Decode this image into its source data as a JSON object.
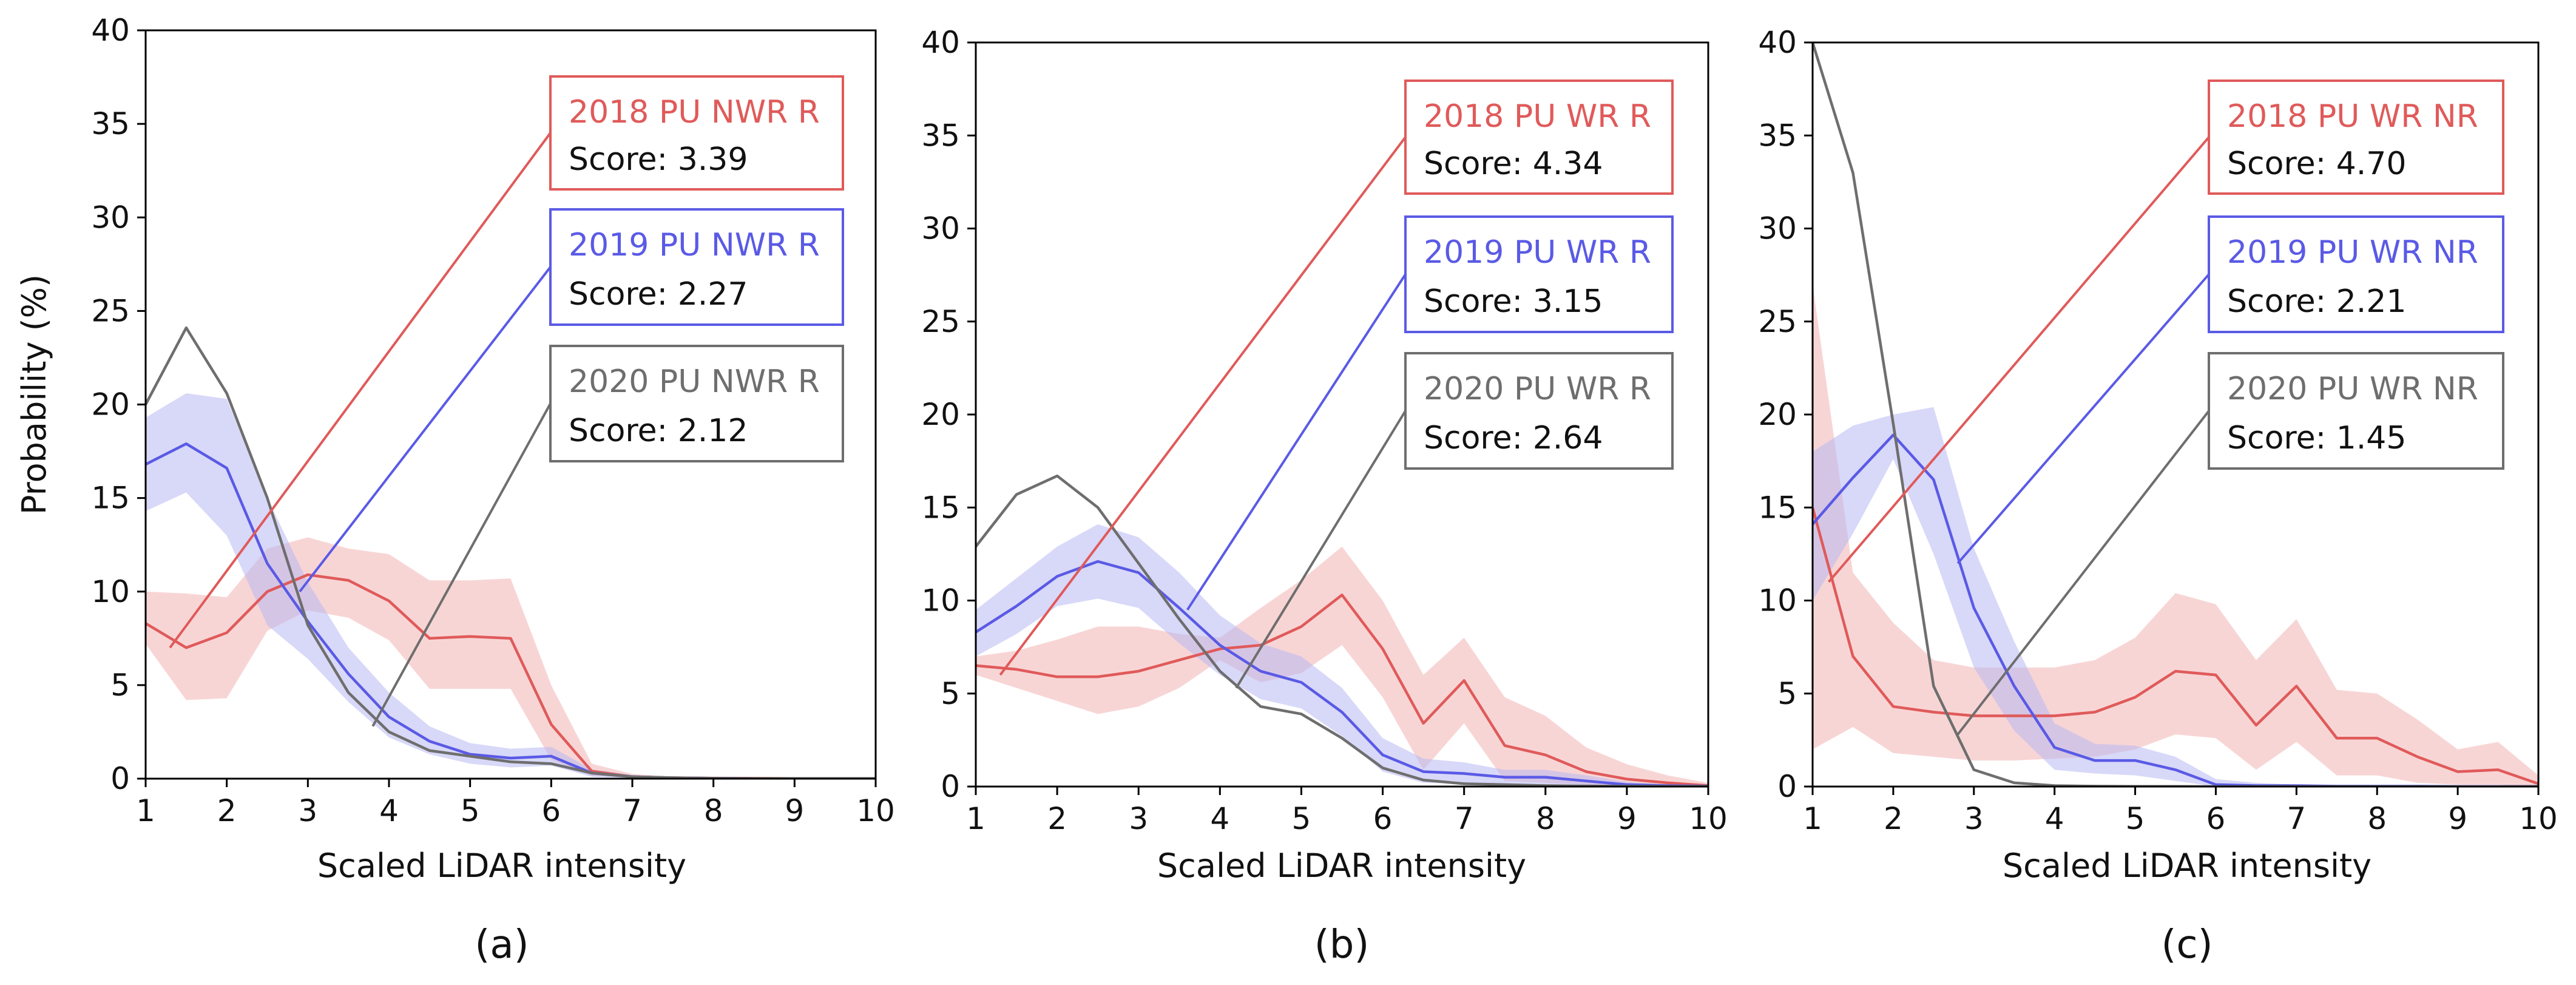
{
  "colors": {
    "2018": "#e05a5a",
    "2019": "#5a5ae6",
    "2020": "#6e6e6e",
    "2018_band": "#f2b2b2",
    "2019_band": "#b8b8f2",
    "axis": "#000000"
  },
  "chart_data": [
    {
      "type": "line",
      "caption": "(a)",
      "xlabel": "Scaled LiDAR intensity",
      "ylabel": "Probability (%)",
      "xlim": [
        1,
        10
      ],
      "ylim": [
        0,
        40
      ],
      "xticks": [
        1,
        2,
        3,
        4,
        5,
        6,
        7,
        8,
        9,
        10
      ],
      "yticks": [
        0,
        5,
        10,
        15,
        20,
        25,
        30,
        35,
        40
      ],
      "x": [
        1,
        1.5,
        2,
        2.5,
        3,
        3.5,
        4,
        4.5,
        5,
        5.5,
        6,
        6.5,
        7,
        7.5,
        8,
        8.5,
        9,
        9.5,
        10
      ],
      "series": [
        {
          "name": "2018 PU NWR R",
          "score_label": "Score: 3.39",
          "color_key": "2018",
          "values": [
            8.3,
            7.0,
            7.8,
            10.0,
            10.9,
            10.6,
            9.5,
            7.5,
            7.6,
            7.5,
            2.9,
            0.4,
            0.1,
            0.05,
            0.03,
            0.02,
            0.01,
            0.01,
            0.01
          ],
          "band_upper": [
            10.0,
            9.9,
            9.7,
            12.3,
            12.9,
            12.3,
            12.0,
            10.6,
            10.6,
            10.7,
            5.0,
            0.8,
            0.25,
            0.1,
            0.05,
            0.03,
            0.02,
            0.02,
            0.02
          ],
          "band_lower": [
            7.2,
            4.2,
            4.3,
            7.9,
            9.0,
            8.6,
            7.4,
            4.8,
            4.8,
            4.8,
            1.0,
            0.15,
            0.05,
            0.02,
            0.01,
            0.01,
            0.0,
            0.0,
            0.0
          ],
          "callout_x": 1.3,
          "callout_y": 7.0
        },
        {
          "name": "2019 PU NWR R",
          "score_label": "Score: 2.27",
          "color_key": "2019",
          "values": [
            16.8,
            17.9,
            16.6,
            11.5,
            8.4,
            5.6,
            3.3,
            2.0,
            1.3,
            1.1,
            1.2,
            0.3,
            0.1,
            0.05,
            0.02,
            0.01,
            0.01,
            0.01,
            0.01
          ],
          "band_upper": [
            19.3,
            20.6,
            20.3,
            15.0,
            10.5,
            7.0,
            4.6,
            2.8,
            1.9,
            1.6,
            1.7,
            0.5,
            0.2,
            0.08,
            0.04,
            0.02,
            0.02,
            0.02,
            0.02
          ],
          "band_lower": [
            14.3,
            15.3,
            13.0,
            8.2,
            6.4,
            4.1,
            2.2,
            1.3,
            0.8,
            0.6,
            0.7,
            0.1,
            0.03,
            0.01,
            0.0,
            0.0,
            0.0,
            0.0,
            0.0
          ],
          "callout_x": 2.9,
          "callout_y": 10.0
        },
        {
          "name": "2020 PU NWR R",
          "score_label": "Score: 2.12",
          "color_key": "2020",
          "values": [
            20.0,
            24.1,
            20.6,
            15.0,
            8.2,
            4.6,
            2.5,
            1.5,
            1.2,
            0.9,
            0.8,
            0.3,
            0.1,
            0.05,
            0.02,
            0.01,
            0.01,
            0.01,
            0.01
          ],
          "callout_x": 3.8,
          "callout_y": 2.8
        }
      ]
    },
    {
      "type": "line",
      "caption": "(b)",
      "xlabel": "Scaled LiDAR intensity",
      "ylabel": "",
      "xlim": [
        1,
        10
      ],
      "ylim": [
        0,
        40
      ],
      "xticks": [
        1,
        2,
        3,
        4,
        5,
        6,
        7,
        8,
        9,
        10
      ],
      "yticks": [
        0,
        5,
        10,
        15,
        20,
        25,
        30,
        35,
        40
      ],
      "x": [
        1,
        1.5,
        2,
        2.5,
        3,
        3.5,
        4,
        4.5,
        5,
        5.5,
        6,
        6.5,
        7,
        7.5,
        8,
        8.5,
        9,
        9.5,
        10
      ],
      "series": [
        {
          "name": "2018 PU WR R",
          "score_label": "Score: 4.34",
          "color_key": "2018",
          "values": [
            6.5,
            6.3,
            5.9,
            5.9,
            6.2,
            6.8,
            7.4,
            7.6,
            8.6,
            10.3,
            7.4,
            3.4,
            5.7,
            2.2,
            1.7,
            0.8,
            0.4,
            0.2,
            0.05
          ],
          "band_upper": [
            7.0,
            7.3,
            7.9,
            8.6,
            8.6,
            8.2,
            8.0,
            9.6,
            11.1,
            12.9,
            10.0,
            6.0,
            8.0,
            4.8,
            3.8,
            2.1,
            1.2,
            0.6,
            0.2
          ],
          "band_lower": [
            6.0,
            5.3,
            4.6,
            3.9,
            4.3,
            5.3,
            6.8,
            5.6,
            6.1,
            7.6,
            4.8,
            0.9,
            3.4,
            0.3,
            0.2,
            0.1,
            0.05,
            0.0,
            0.0
          ],
          "callout_x": 1.3,
          "callout_y": 6.0
        },
        {
          "name": "2019 PU WR R",
          "score_label": "Score: 3.15",
          "color_key": "2019",
          "values": [
            8.3,
            9.7,
            11.3,
            12.1,
            11.5,
            9.6,
            7.6,
            6.2,
            5.6,
            4.0,
            1.7,
            0.8,
            0.7,
            0.5,
            0.5,
            0.3,
            0.1,
            0.05,
            0.02
          ],
          "band_upper": [
            9.5,
            11.2,
            12.9,
            14.1,
            13.4,
            11.5,
            9.2,
            7.7,
            7.0,
            5.3,
            2.6,
            1.5,
            1.3,
            0.9,
            0.9,
            0.6,
            0.25,
            0.1,
            0.05
          ],
          "band_lower": [
            7.0,
            8.2,
            9.7,
            10.1,
            9.6,
            7.7,
            6.0,
            4.7,
            4.2,
            2.7,
            0.8,
            0.2,
            0.15,
            0.1,
            0.1,
            0.05,
            0.0,
            0.0,
            0.0
          ],
          "callout_x": 3.6,
          "callout_y": 9.5
        },
        {
          "name": "2020 PU WR R",
          "score_label": "Score: 2.64",
          "color_key": "2020",
          "values": [
            12.9,
            15.7,
            16.7,
            15.0,
            12.0,
            9.0,
            6.2,
            4.3,
            3.9,
            2.6,
            1.0,
            0.35,
            0.15,
            0.1,
            0.05,
            0.03,
            0.02,
            0.01,
            0.01
          ],
          "callout_x": 4.2,
          "callout_y": 5.3
        }
      ]
    },
    {
      "type": "line",
      "caption": "(c)",
      "xlabel": "Scaled LiDAR intensity",
      "ylabel": "",
      "xlim": [
        1,
        10
      ],
      "ylim": [
        0,
        40
      ],
      "xticks": [
        1,
        2,
        3,
        4,
        5,
        6,
        7,
        8,
        9,
        10
      ],
      "yticks": [
        0,
        5,
        10,
        15,
        20,
        25,
        30,
        35,
        40
      ],
      "x": [
        1,
        1.5,
        2,
        2.5,
        3,
        3.5,
        4,
        4.5,
        5,
        5.5,
        6,
        6.5,
        7,
        7.5,
        8,
        8.5,
        9,
        9.5,
        10
      ],
      "series": [
        {
          "name": "2018 PU WR NR",
          "score_label": "Score: 4.70",
          "color_key": "2018",
          "values": [
            15.0,
            7.0,
            4.3,
            4.0,
            3.8,
            3.8,
            3.8,
            4.0,
            4.8,
            6.2,
            6.0,
            3.3,
            5.4,
            2.6,
            2.6,
            1.6,
            0.8,
            0.9,
            0.15
          ],
          "band_upper": [
            27.0,
            11.5,
            8.8,
            6.8,
            6.4,
            6.4,
            6.4,
            6.8,
            8.0,
            10.4,
            9.8,
            6.8,
            9.0,
            5.2,
            5.0,
            3.6,
            2.0,
            2.4,
            0.6
          ],
          "band_lower": [
            2.0,
            3.2,
            1.8,
            1.6,
            1.4,
            1.4,
            1.5,
            1.6,
            2.0,
            2.8,
            2.6,
            0.9,
            2.4,
            0.6,
            0.6,
            0.2,
            0.1,
            0.1,
            0.0
          ],
          "callout_x": 1.2,
          "callout_y": 11.0
        },
        {
          "name": "2019 PU WR NR",
          "score_label": "Score: 2.21",
          "color_key": "2019",
          "values": [
            14.1,
            16.6,
            18.9,
            16.5,
            9.6,
            5.4,
            2.1,
            1.4,
            1.4,
            0.9,
            0.1,
            0.05,
            0.05,
            0.02,
            0.02,
            0.02,
            0.01,
            0.01,
            0.01
          ],
          "band_upper": [
            18.0,
            19.4,
            20.0,
            20.4,
            12.8,
            7.8,
            3.4,
            2.3,
            2.2,
            1.6,
            0.4,
            0.2,
            0.1,
            0.05,
            0.05,
            0.05,
            0.02,
            0.02,
            0.02
          ],
          "band_lower": [
            10.0,
            13.6,
            17.6,
            12.5,
            6.4,
            3.0,
            0.9,
            0.7,
            0.6,
            0.3,
            0.0,
            0.0,
            0.0,
            0.0,
            0.0,
            0.0,
            0.0,
            0.0,
            0.0
          ],
          "callout_x": 2.8,
          "callout_y": 12.0
        },
        {
          "name": "2020 PU WR NR",
          "score_label": "Score: 1.45",
          "color_key": "2020",
          "values": [
            40.0,
            33.0,
            19.5,
            5.4,
            0.9,
            0.2,
            0.05,
            0.02,
            0.01,
            0.01,
            0.0,
            0.0,
            0.0,
            0.0,
            0.0,
            0.0,
            0.0,
            0.0,
            0.0
          ],
          "callout_x": 2.8,
          "callout_y": 2.8
        }
      ]
    }
  ]
}
